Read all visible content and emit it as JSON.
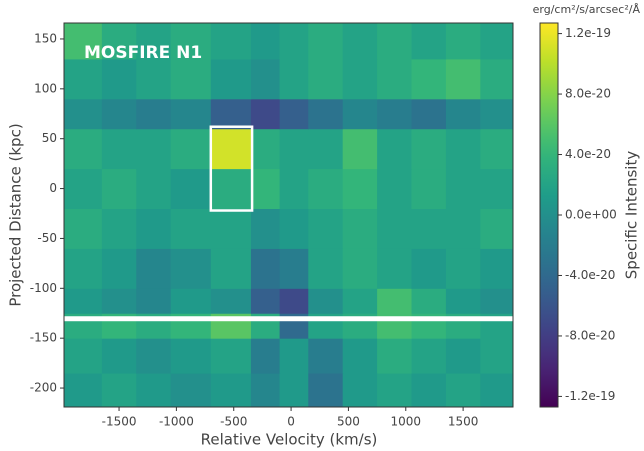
{
  "chart_data": {
    "type": "heatmap",
    "title": "MOSFIRE N1",
    "x_label": "Relative Velocity (km/s)",
    "y_label": "Projected Distance (kpc)",
    "colorbar_label": "Specific Intensity",
    "colorbar_unit": "erg/cm²/s/arcsec²/Å",
    "colormap": "viridis",
    "xlim": [
      -1980,
      1935
    ],
    "ylim": [
      -219,
      166
    ],
    "xticks": [
      -1500,
      -1000,
      -500,
      0,
      500,
      1000,
      1500
    ],
    "yticks": [
      -200,
      -150,
      -100,
      -50,
      0,
      50,
      100,
      150
    ],
    "clim": [
      -1.27e-19,
      1.27e-19
    ],
    "cticks": [
      {
        "value": 1.2e-19,
        "label": "1.2e-19"
      },
      {
        "value": 8e-20,
        "label": "8.0e-20"
      },
      {
        "value": 4e-20,
        "label": "4.0e-20"
      },
      {
        "value": 0,
        "label": "0.0e+00"
      },
      {
        "value": -4e-20,
        "label": "-4.0e-20"
      },
      {
        "value": -8e-20,
        "label": "-8.0e-20"
      },
      {
        "value": -1.2e-19,
        "label": "-1.2e-19"
      }
    ],
    "x_edges": [
      -1980,
      -1650,
      -1350,
      -1050,
      -700,
      -350,
      -100,
      150,
      450,
      750,
      1050,
      1350,
      1650,
      1935
    ],
    "y_edges": [
      -219,
      -185,
      -150,
      -125,
      -100,
      -60,
      -20,
      20,
      60,
      90,
      130,
      166
    ],
    "z": [
      [
        1e-20,
        2e-20,
        1e-20,
        0,
        1e-20,
        -1e-20,
        1e-20,
        -3e-20,
        1e-20,
        2e-20,
        1e-20,
        2e-20,
        1e-20
      ],
      [
        2e-20,
        1e-20,
        0,
        1e-20,
        2e-20,
        -2e-20,
        1e-20,
        -2e-20,
        1e-20,
        3e-20,
        2e-20,
        1e-20,
        2e-20
      ],
      [
        3e-20,
        4e-20,
        3e-20,
        4e-20,
        6e-20,
        3e-20,
        -4e-20,
        2e-20,
        3e-20,
        5e-20,
        4e-20,
        3e-20,
        2e-20
      ],
      [
        1e-20,
        0,
        -1e-20,
        1e-20,
        0,
        -5e-20,
        -7e-20,
        0,
        2e-20,
        5e-20,
        3e-20,
        1e-20,
        0
      ],
      [
        2e-20,
        1e-20,
        -1e-20,
        0,
        2e-20,
        -3e-20,
        -2e-20,
        2e-20,
        3e-20,
        2e-20,
        1e-20,
        2e-20,
        1e-20
      ],
      [
        3e-20,
        2e-20,
        1e-20,
        2e-20,
        2e-20,
        0,
        1e-20,
        2e-20,
        3e-20,
        2e-20,
        2e-20,
        2e-20,
        3e-20
      ],
      [
        2e-20,
        3e-20,
        2e-20,
        1e-20,
        3e-20,
        4e-20,
        2e-20,
        3e-20,
        4e-20,
        2e-20,
        3e-20,
        2e-20,
        2e-20
      ],
      [
        3e-20,
        2e-20,
        2e-20,
        3e-20,
        1.1e-19,
        3e-20,
        2e-20,
        2e-20,
        5e-20,
        2e-20,
        3e-20,
        2e-20,
        3e-20
      ],
      [
        0,
        -1e-20,
        -2e-20,
        -1e-20,
        -5e-20,
        -7e-20,
        -5e-20,
        -3e-20,
        -1e-20,
        -2e-20,
        -3e-20,
        -1e-20,
        0
      ],
      [
        2e-20,
        1e-20,
        2e-20,
        3e-20,
        1e-20,
        0,
        2e-20,
        3e-20,
        2e-20,
        3e-20,
        4e-20,
        5e-20,
        3e-20
      ],
      [
        5e-20,
        3e-20,
        2e-20,
        3e-20,
        2e-20,
        1e-20,
        2e-20,
        3e-20,
        2e-20,
        3e-20,
        2e-20,
        3e-20,
        2e-20
      ]
    ],
    "mask_band": [
      -133,
      -128
    ],
    "box": {
      "x": [
        -700,
        -340
      ],
      "y": [
        -22,
        62
      ]
    }
  }
}
